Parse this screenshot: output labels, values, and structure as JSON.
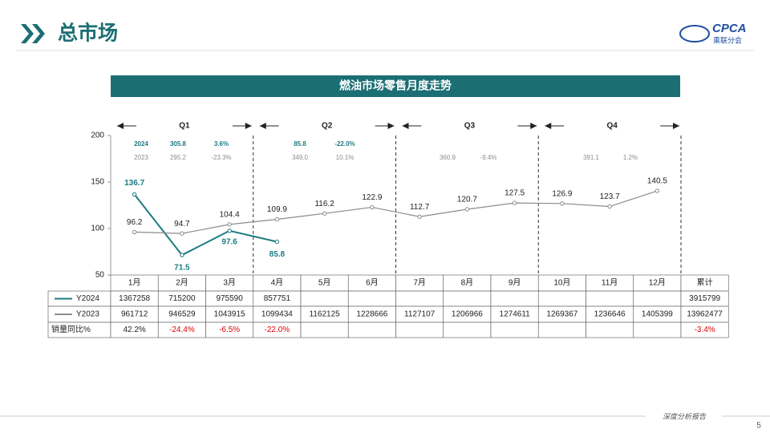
{
  "header": {
    "title": "总市场",
    "logo": "CPCA",
    "logo_sub": "乘联分会"
  },
  "chart_data": {
    "type": "line",
    "title": "燃油市场零售月度走势",
    "categories": [
      "1月",
      "2月",
      "3月",
      "4月",
      "5月",
      "6月",
      "7月",
      "8月",
      "9月",
      "10月",
      "11月",
      "12月"
    ],
    "series": [
      {
        "name": "Y2024",
        "color": "#1b7b83",
        "values": [
          136.7,
          71.5,
          97.6,
          85.8,
          null,
          null,
          null,
          null,
          null,
          null,
          null,
          null
        ]
      },
      {
        "name": "Y2023",
        "color": "#8c8c8c",
        "values": [
          96.2,
          94.7,
          104.4,
          109.9,
          116.2,
          122.9,
          112.7,
          120.7,
          127.5,
          126.9,
          123.7,
          140.5
        ]
      }
    ],
    "ylim": [
      50,
      200
    ],
    "yticks": [
      50,
      100,
      150,
      200
    ],
    "quarters": [
      {
        "label": "Q1",
        "y2024": [
          "2024",
          "305.8",
          "3.6%"
        ],
        "y2023": [
          "2023",
          "295.2",
          "-23.3%"
        ]
      },
      {
        "label": "Q2",
        "y2024": [
          "85.8",
          "-22.0%"
        ],
        "y2023": [
          "349.0",
          "10.1%"
        ]
      },
      {
        "label": "Q3",
        "y2023": [
          "360.9",
          "-9.4%"
        ]
      },
      {
        "label": "Q4",
        "y2023": [
          "391.1",
          "1.2%"
        ]
      }
    ]
  },
  "table": {
    "header": [
      "1月",
      "2月",
      "3月",
      "4月",
      "5月",
      "6月",
      "7月",
      "8月",
      "9月",
      "10月",
      "11月",
      "12月",
      "累计"
    ],
    "rows": [
      [
        1367258,
        715200,
        975590,
        857751,
        null,
        null,
        null,
        null,
        null,
        null,
        null,
        null,
        3915799
      ],
      [
        961712,
        946529,
        1043915,
        1099434,
        1162125,
        1228666,
        1127107,
        1206966,
        1274611,
        1269367,
        1236646,
        1405399,
        13962477
      ]
    ],
    "yoy_label": "销量同比%",
    "yoy": [
      "42.2%",
      "-24.4%",
      "-6.5%",
      "-22.0%",
      null,
      null,
      null,
      null,
      null,
      null,
      null,
      null,
      "-3.4%"
    ]
  },
  "footer": {
    "text": "深度分析报告",
    "page": "5"
  }
}
